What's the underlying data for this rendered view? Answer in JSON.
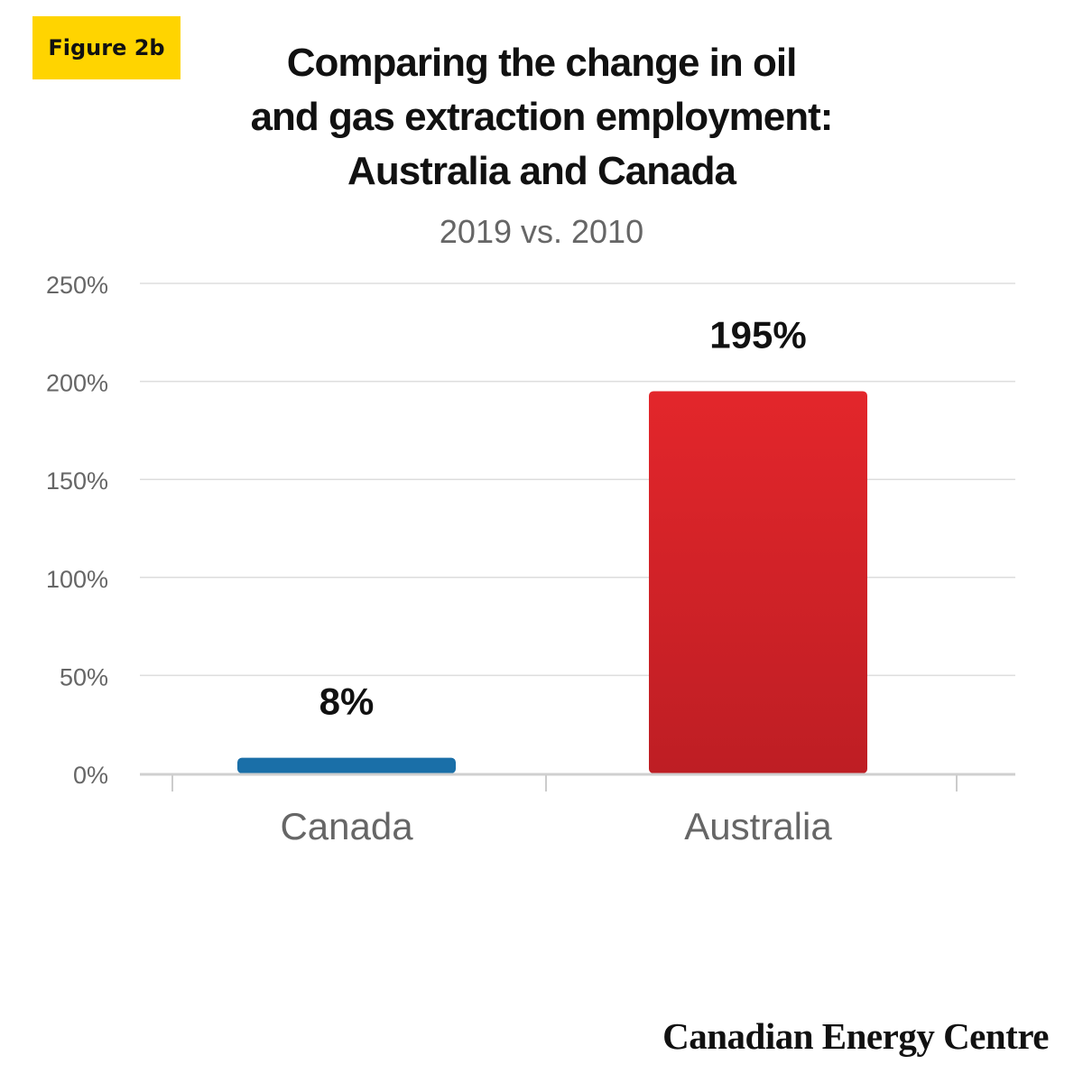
{
  "figure_tag": "Figure 2b",
  "title_lines": [
    "Comparing the change in oil",
    "and gas extraction employment:",
    "Australia and Canada"
  ],
  "subtitle": "2019 vs. 2010",
  "brand": "Canadian Energy Centre",
  "colors": {
    "tag_bg": "#FFD400",
    "canada": "#1A6FA8",
    "australia_top": "#E3262B",
    "australia_bottom": "#BE1E24",
    "gridline": "#DDDDDD",
    "axis_text": "#666666",
    "value_text": "#111111"
  },
  "chart_data": {
    "type": "bar",
    "categories": [
      "Canada",
      "Australia"
    ],
    "values": [
      8,
      195
    ],
    "value_labels": [
      "8%",
      "195%"
    ],
    "yticks": [
      "250%",
      "200%",
      "150%",
      "100%",
      "50%",
      "0%"
    ],
    "ylim": [
      0,
      250
    ],
    "grid": true,
    "legend": "none"
  }
}
